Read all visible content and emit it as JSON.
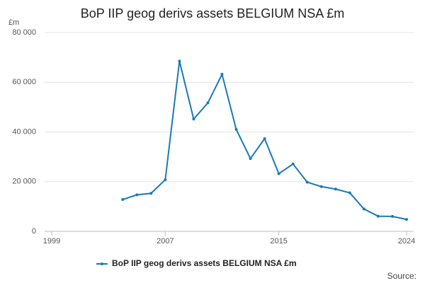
{
  "chart_data": {
    "type": "line",
    "title": "BoP IIP geog derivs assets BELGIUM NSA £m",
    "y_unit": "£m",
    "source": "Source:",
    "x": [
      2004,
      2005,
      2006,
      2007,
      2008,
      2009,
      2010,
      2011,
      2012,
      2013,
      2014,
      2015,
      2016,
      2017,
      2018,
      2019,
      2020,
      2021,
      2022,
      2023,
      2024
    ],
    "series": [
      {
        "name": "BoP IIP geog derivs assets BELGIUM NSA £m",
        "color": "#1a7ab5",
        "values": [
          12800,
          14700,
          15300,
          20800,
          68500,
          45200,
          51700,
          63200,
          41000,
          29300,
          37300,
          23200,
          27100,
          19800,
          18000,
          17000,
          15500,
          9000,
          6100,
          6000,
          4800
        ]
      }
    ],
    "xlim": [
      1998.5,
      2024.5
    ],
    "xticks": [
      1999,
      2007,
      2015,
      2024
    ],
    "ylim": [
      0,
      80000
    ],
    "yticks": [
      0,
      {
        "value": 20000,
        "label": "20 000"
      },
      {
        "value": 40000,
        "label": "40 000"
      },
      {
        "value": 60000,
        "label": "60 000"
      },
      {
        "value": 80000,
        "label": "80 000"
      }
    ],
    "grid": true,
    "legend": "bottom"
  }
}
